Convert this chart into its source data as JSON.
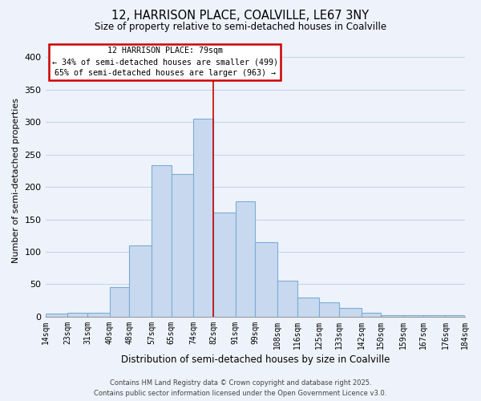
{
  "title_line1": "12, HARRISON PLACE, COALVILLE, LE67 3NY",
  "title_line2": "Size of property relative to semi-detached houses in Coalville",
  "xlabel": "Distribution of semi-detached houses by size in Coalville",
  "ylabel": "Number of semi-detached properties",
  "bin_labels": [
    "14sqm",
    "23sqm",
    "31sqm",
    "40sqm",
    "48sqm",
    "57sqm",
    "65sqm",
    "74sqm",
    "82sqm",
    "91sqm",
    "99sqm",
    "108sqm",
    "116sqm",
    "125sqm",
    "133sqm",
    "142sqm",
    "150sqm",
    "159sqm",
    "167sqm",
    "176sqm",
    "184sqm"
  ],
  "bar_heights": [
    5,
    6,
    6,
    46,
    110,
    234,
    220,
    305,
    160,
    178,
    115,
    55,
    29,
    22,
    13,
    6,
    2,
    2,
    2,
    2
  ],
  "bar_color": "#c8d9ef",
  "bar_edge_color": "#7aadd4",
  "grid_color": "#c8d4e8",
  "background_color": "#eef2fa",
  "property_line_x": 82,
  "annotation_title": "12 HARRISON PLACE: 79sqm",
  "annotation_line1": "← 34% of semi-detached houses are smaller (499)",
  "annotation_line2": "65% of semi-detached houses are larger (963) →",
  "box_edge_color": "#cc0000",
  "line_color": "#cc0000",
  "ylim": [
    0,
    420
  ],
  "yticks": [
    0,
    50,
    100,
    150,
    200,
    250,
    300,
    350,
    400
  ],
  "footer_line1": "Contains HM Land Registry data © Crown copyright and database right 2025.",
  "footer_line2": "Contains public sector information licensed under the Open Government Licence v3.0."
}
